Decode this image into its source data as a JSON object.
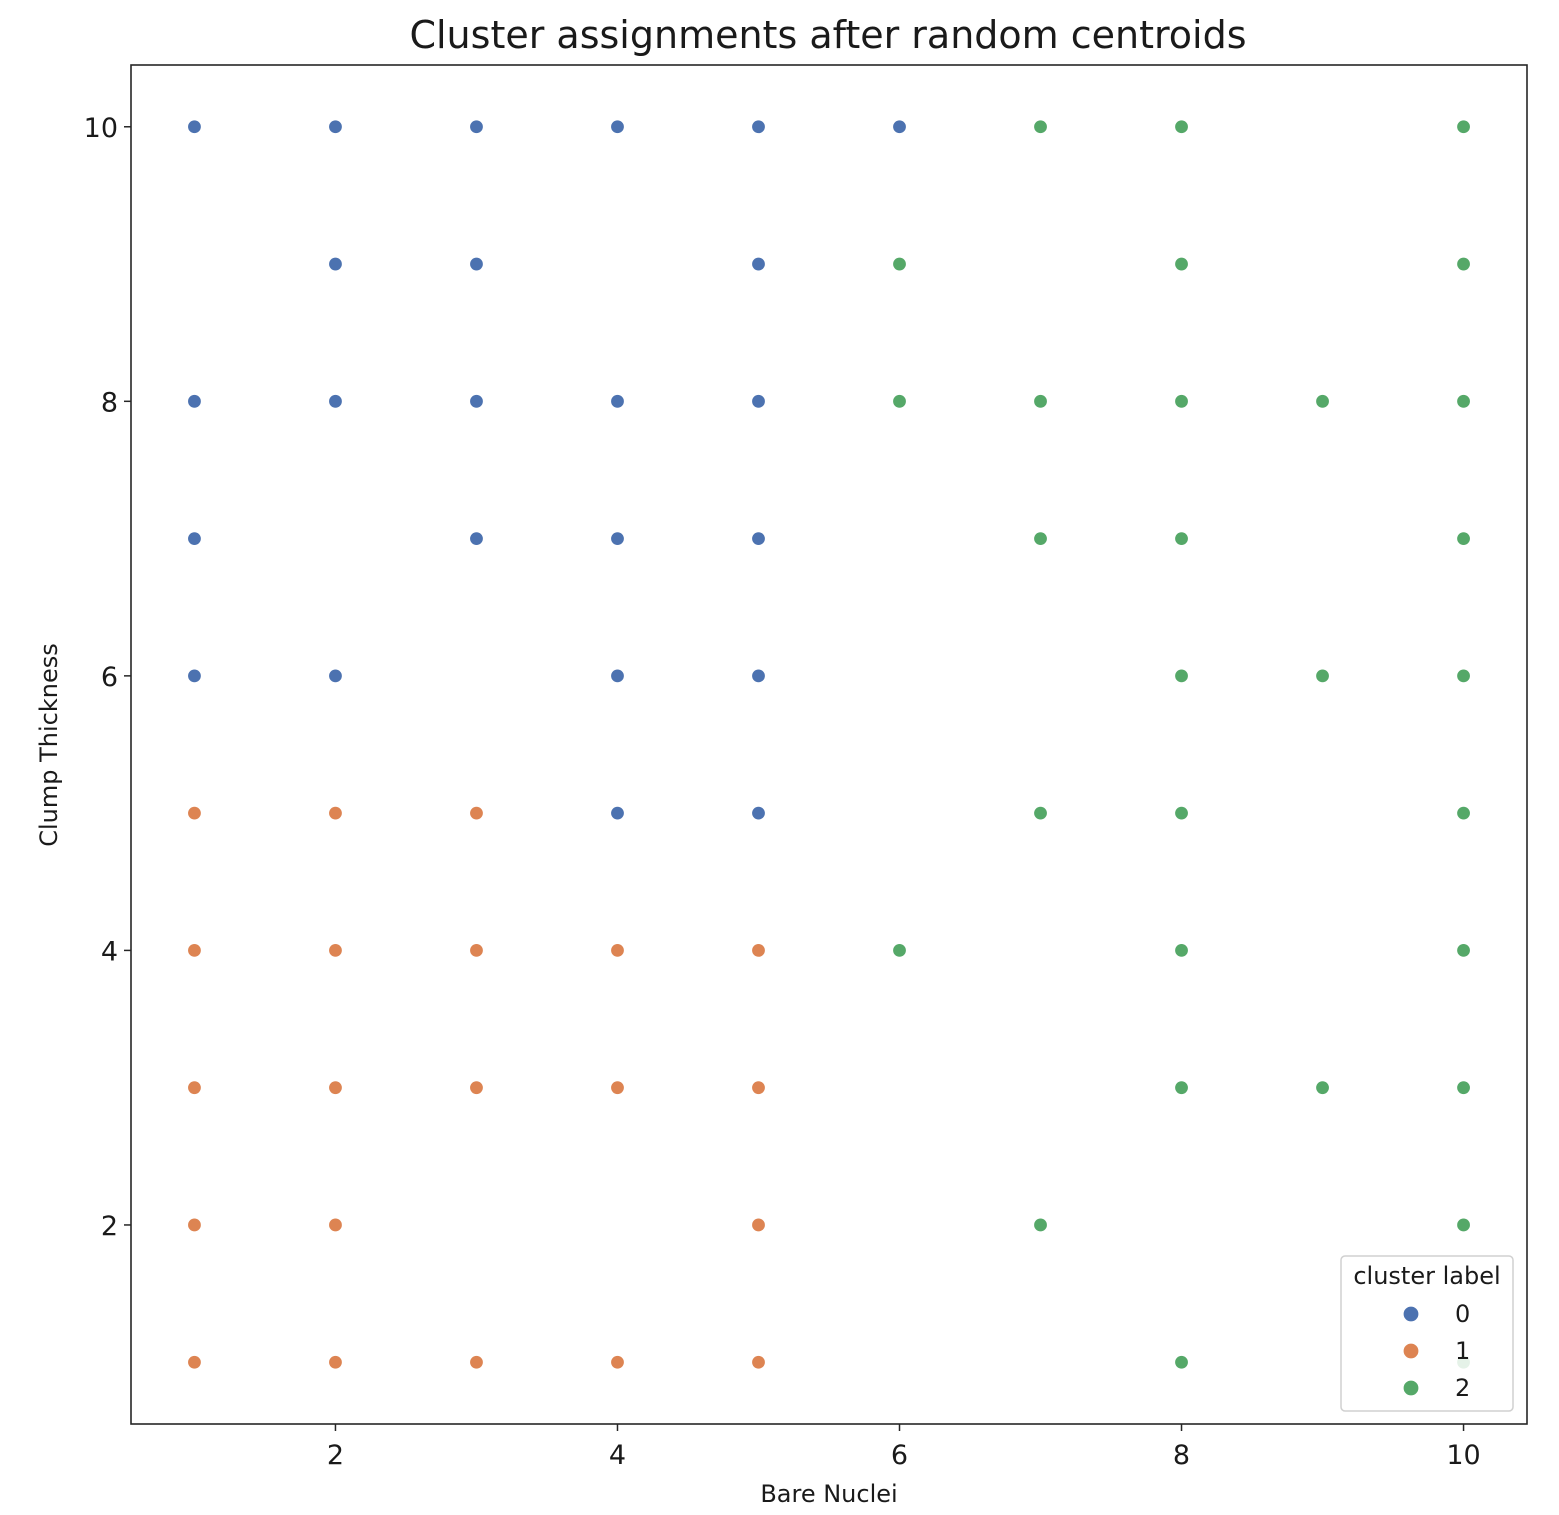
{
  "chart_data": {
    "type": "scatter",
    "title": "Cluster assignments after random centroids",
    "xlabel": "Bare Nuclei",
    "ylabel": "Clump Thickness",
    "xlim": [
      0.55,
      10.45
    ],
    "ylim": [
      0.55,
      10.45
    ],
    "xticks": [
      2,
      4,
      6,
      8,
      10
    ],
    "yticks": [
      2,
      4,
      6,
      8,
      10
    ],
    "grid": false,
    "legend": {
      "title": "cluster label",
      "placement": "lower-right",
      "entries": [
        "0",
        "1",
        "2"
      ]
    },
    "series": [
      {
        "name": "0",
        "color": "#4c72b0",
        "points": [
          [
            1,
            10
          ],
          [
            2,
            10
          ],
          [
            3,
            10
          ],
          [
            4,
            10
          ],
          [
            5,
            10
          ],
          [
            6,
            10
          ],
          [
            2,
            9
          ],
          [
            3,
            9
          ],
          [
            5,
            9
          ],
          [
            1,
            8
          ],
          [
            2,
            8
          ],
          [
            3,
            8
          ],
          [
            4,
            8
          ],
          [
            5,
            8
          ],
          [
            1,
            7
          ],
          [
            3,
            7
          ],
          [
            4,
            7
          ],
          [
            5,
            7
          ],
          [
            1,
            6
          ],
          [
            2,
            6
          ],
          [
            4,
            6
          ],
          [
            5,
            6
          ],
          [
            4,
            5
          ],
          [
            5,
            5
          ]
        ]
      },
      {
        "name": "1",
        "color": "#dd8452",
        "points": [
          [
            1,
            5
          ],
          [
            2,
            5
          ],
          [
            3,
            5
          ],
          [
            1,
            4
          ],
          [
            2,
            4
          ],
          [
            3,
            4
          ],
          [
            4,
            4
          ],
          [
            5,
            4
          ],
          [
            1,
            3
          ],
          [
            2,
            3
          ],
          [
            3,
            3
          ],
          [
            4,
            3
          ],
          [
            5,
            3
          ],
          [
            1,
            2
          ],
          [
            2,
            2
          ],
          [
            5,
            2
          ],
          [
            1,
            1
          ],
          [
            2,
            1
          ],
          [
            3,
            1
          ],
          [
            4,
            1
          ],
          [
            5,
            1
          ]
        ]
      },
      {
        "name": "2",
        "color": "#55a868",
        "points": [
          [
            7,
            10
          ],
          [
            8,
            10
          ],
          [
            10,
            10
          ],
          [
            6,
            9
          ],
          [
            8,
            9
          ],
          [
            10,
            9
          ],
          [
            6,
            8
          ],
          [
            7,
            8
          ],
          [
            8,
            8
          ],
          [
            9,
            8
          ],
          [
            10,
            8
          ],
          [
            7,
            7
          ],
          [
            8,
            7
          ],
          [
            10,
            7
          ],
          [
            8,
            6
          ],
          [
            9,
            6
          ],
          [
            10,
            6
          ],
          [
            7,
            5
          ],
          [
            8,
            5
          ],
          [
            10,
            5
          ],
          [
            6,
            4
          ],
          [
            8,
            4
          ],
          [
            10,
            4
          ],
          [
            8,
            3
          ],
          [
            9,
            3
          ],
          [
            10,
            3
          ],
          [
            7,
            2
          ],
          [
            10,
            2
          ],
          [
            8,
            1
          ],
          [
            10,
            1
          ]
        ]
      }
    ]
  }
}
